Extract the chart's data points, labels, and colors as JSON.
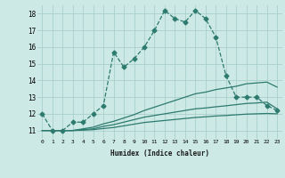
{
  "xlabel": "Humidex (Indice chaleur)",
  "ylabel": "",
  "xlim": [
    -0.5,
    23.5
  ],
  "ylim": [
    10.5,
    18.5
  ],
  "xticks": [
    0,
    1,
    2,
    3,
    4,
    5,
    6,
    7,
    8,
    9,
    10,
    11,
    12,
    13,
    14,
    15,
    16,
    17,
    18,
    19,
    20,
    21,
    22,
    23
  ],
  "yticks": [
    11,
    12,
    13,
    14,
    15,
    16,
    17,
    18
  ],
  "background_color": "#cce9e5",
  "grid_color": "#aacfcb",
  "line_color": "#2d7a6e",
  "lines": [
    {
      "x": [
        0,
        1,
        2,
        3,
        4,
        5,
        6,
        7,
        8,
        9,
        10,
        11,
        12,
        13,
        14,
        15,
        16,
        17,
        18,
        19,
        20,
        21,
        22,
        23
      ],
      "y": [
        12.0,
        11.0,
        11.0,
        11.5,
        11.5,
        12.0,
        12.5,
        15.7,
        14.8,
        15.3,
        16.0,
        17.0,
        18.2,
        17.7,
        17.5,
        18.2,
        17.7,
        16.6,
        14.3,
        13.0,
        13.0,
        13.0,
        12.5,
        12.2
      ],
      "marker": "D",
      "markersize": 2.5,
      "linewidth": 0.9,
      "linestyle": "--"
    },
    {
      "x": [
        0,
        1,
        2,
        3,
        4,
        5,
        6,
        7,
        8,
        9,
        10,
        11,
        12,
        13,
        14,
        15,
        16,
        17,
        18,
        19,
        20,
        21,
        22,
        23
      ],
      "y": [
        11.0,
        11.0,
        11.0,
        11.0,
        11.1,
        11.2,
        11.4,
        11.55,
        11.75,
        11.95,
        12.2,
        12.4,
        12.6,
        12.8,
        13.0,
        13.2,
        13.3,
        13.45,
        13.55,
        13.65,
        13.8,
        13.85,
        13.9,
        13.6
      ],
      "marker": null,
      "markersize": 0,
      "linewidth": 0.9,
      "linestyle": "-"
    },
    {
      "x": [
        0,
        1,
        2,
        3,
        4,
        5,
        6,
        7,
        8,
        9,
        10,
        11,
        12,
        13,
        14,
        15,
        16,
        17,
        18,
        19,
        20,
        21,
        22,
        23
      ],
      "y": [
        11.0,
        11.0,
        11.0,
        11.0,
        11.05,
        11.1,
        11.25,
        11.35,
        11.5,
        11.65,
        11.8,
        11.9,
        12.0,
        12.1,
        12.2,
        12.3,
        12.35,
        12.42,
        12.48,
        12.55,
        12.62,
        12.65,
        12.7,
        12.3
      ],
      "marker": null,
      "markersize": 0,
      "linewidth": 0.9,
      "linestyle": "-"
    },
    {
      "x": [
        0,
        1,
        2,
        3,
        4,
        5,
        6,
        7,
        8,
        9,
        10,
        11,
        12,
        13,
        14,
        15,
        16,
        17,
        18,
        19,
        20,
        21,
        22,
        23
      ],
      "y": [
        11.0,
        11.0,
        11.0,
        11.0,
        11.02,
        11.05,
        11.12,
        11.18,
        11.28,
        11.38,
        11.48,
        11.54,
        11.6,
        11.66,
        11.72,
        11.78,
        11.82,
        11.87,
        11.9,
        11.94,
        11.98,
        12.0,
        12.02,
        12.0
      ],
      "marker": null,
      "markersize": 0,
      "linewidth": 0.9,
      "linestyle": "-"
    }
  ]
}
